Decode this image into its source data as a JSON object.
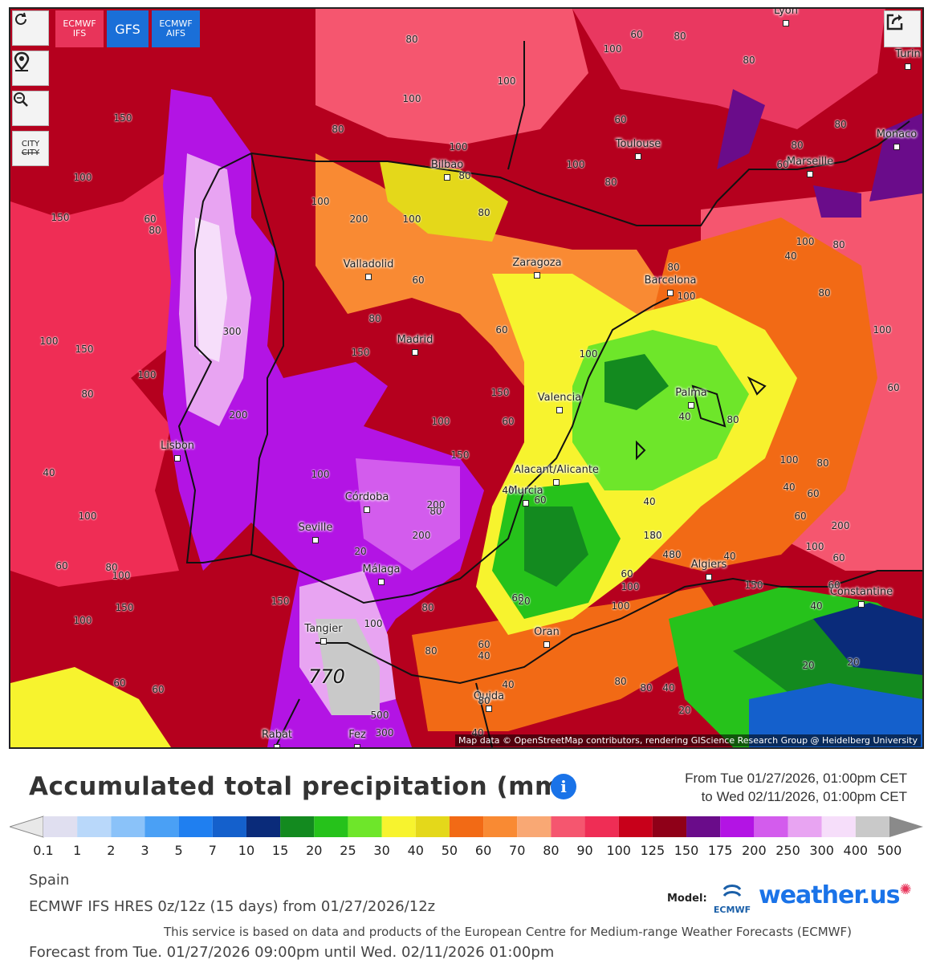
{
  "controls": {
    "refresh_icon": "refresh-icon",
    "location_icon": "map-pin-icon",
    "zoom_icon": "zoom-icon",
    "city_toggle_line1": "CITY",
    "city_toggle_line2": "CITY",
    "share_icon": "share-icon"
  },
  "models": [
    {
      "line1": "ECMWF",
      "line2": "IFS",
      "color": "#e8345a"
    },
    {
      "line1": "GFS",
      "line2": "",
      "color": "#1a6fd8"
    },
    {
      "line1": "ECMWF",
      "line2": "AIFS",
      "color": "#1a6fd8"
    }
  ],
  "map": {
    "attribution": "Map data © OpenStreetMap contributors, rendering GIScience Research Group @ Heidelberg University",
    "cities": [
      {
        "name": "Lyon"
      },
      {
        "name": "Turin"
      },
      {
        "name": "Monaco"
      },
      {
        "name": "Toulouse"
      },
      {
        "name": "Marseille"
      },
      {
        "name": "Bilbao"
      },
      {
        "name": "Valladolid"
      },
      {
        "name": "Zaragoza"
      },
      {
        "name": "Barcelona"
      },
      {
        "name": "Madrid"
      },
      {
        "name": "Valencia"
      },
      {
        "name": "Palma"
      },
      {
        "name": "Lisbon"
      },
      {
        "name": "Alacant/Alicante"
      },
      {
        "name": "Murcia"
      },
      {
        "name": "Córdoba"
      },
      {
        "name": "Seville"
      },
      {
        "name": "Málaga"
      },
      {
        "name": "Algiers"
      },
      {
        "name": "Constantine"
      },
      {
        "name": "Tangier"
      },
      {
        "name": "Oran"
      },
      {
        "name": "Oujda"
      },
      {
        "name": "Rabat"
      },
      {
        "name": "Fez"
      }
    ],
    "value_labels": [
      "80",
      "60",
      "80",
      "100",
      "80",
      "100",
      "100",
      "60",
      "80",
      "80",
      "150",
      "100",
      "80",
      "100",
      "80",
      "80",
      "60",
      "100",
      "100",
      "150",
      "200",
      "100",
      "80",
      "60",
      "80",
      "100",
      "80",
      "80",
      "60",
      "100",
      "80",
      "40",
      "80",
      "60",
      "300",
      "150",
      "100",
      "150",
      "80",
      "100",
      "60",
      "100",
      "100",
      "200",
      "150",
      "60",
      "40",
      "80",
      "100",
      "150",
      "100",
      "80",
      "40",
      "100",
      "40",
      "40",
      "40",
      "100",
      "60",
      "80",
      "150",
      "200",
      "40",
      "100",
      "200",
      "200",
      "20",
      "80",
      "100",
      "150",
      "150",
      "100",
      "80",
      "80",
      "60",
      "60",
      "60",
      "100",
      "20",
      "60",
      "80",
      "40",
      "20",
      "20",
      "80",
      "80",
      "60",
      "60",
      "80",
      "40",
      "20",
      "40",
      "40",
      "770",
      "500",
      "300",
      "60",
      "80",
      "60",
      "60",
      "40",
      "40",
      "150",
      "100",
      "100",
      "60"
    ]
  },
  "legend": {
    "title": "Accumulated total precipitation (mm)",
    "info_icon": "info-icon",
    "period_from": "From Tue 01/27/2026, 01:00pm CET",
    "period_to": "to Wed 02/11/2026, 01:00pm CET",
    "ticks": [
      "0.1",
      "1",
      "2",
      "3",
      "5",
      "7",
      "10",
      "15",
      "20",
      "25",
      "30",
      "40",
      "50",
      "60",
      "70",
      "80",
      "90",
      "100",
      "125",
      "150",
      "175",
      "200",
      "250",
      "300",
      "400",
      "500"
    ],
    "colors": [
      "#e0dff0",
      "#b9d8fa",
      "#8ac2f9",
      "#4aa0f5",
      "#1f7ff0",
      "#1460cc",
      "#0a2b7a",
      "#138a1f",
      "#26c21b",
      "#6ee62a",
      "#f7f32e",
      "#e4d81a",
      "#f26a15",
      "#f98a33",
      "#f9a874",
      "#f5566f",
      "#ef2d55",
      "#c8001a",
      "#8f0018",
      "#6a0c8a",
      "#b314e4",
      "#d35ced",
      "#e8a4f2",
      "#f6defa",
      "#c9c9c9"
    ]
  },
  "footer": {
    "region": "Spain",
    "model_info": "ECMWF IFS HRES 0z/12z (15 days) from 01/27/2026/12z",
    "service": "This service is based on data and products of the European Centre for Medium-range Weather Forecasts (ECMWF)",
    "forecast": "Forecast from Tue. 01/27/2026 09:00pm until Wed. 02/11/2026 01:00pm",
    "model_label": "Model:",
    "ecmwf_text": "ECMWF",
    "brand": "weather.us"
  }
}
